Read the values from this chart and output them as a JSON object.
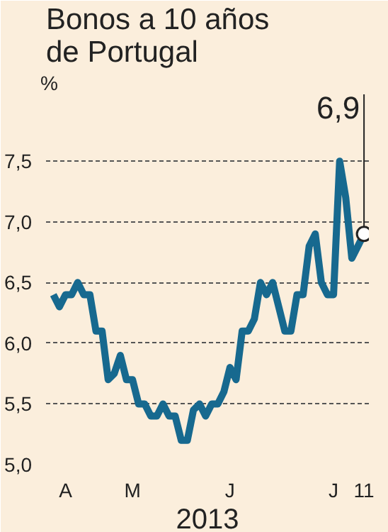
{
  "chart_data": {
    "type": "line",
    "title": "Bonos a 10 años de Portugal",
    "ylabel": "%",
    "xlabel": "2013",
    "categories": [
      null,
      null,
      "A",
      null,
      null,
      null,
      null,
      null,
      null,
      null,
      null,
      null,
      null,
      "M",
      null,
      null,
      null,
      null,
      null,
      null,
      null,
      null,
      null,
      null,
      null,
      null,
      null,
      null,
      null,
      "J",
      null,
      null,
      null,
      null,
      null,
      null,
      null,
      null,
      null,
      null,
      null,
      null,
      null,
      null,
      null,
      null,
      "J",
      null,
      null,
      null,
      null,
      "11"
    ],
    "series": [
      {
        "color": "#17698f",
        "values": [
          6.4,
          6.3,
          6.4,
          6.4,
          6.5,
          6.4,
          6.4,
          6.1,
          6.1,
          5.7,
          5.75,
          5.9,
          5.7,
          5.7,
          5.5,
          5.5,
          5.4,
          5.4,
          5.5,
          5.4,
          5.4,
          5.2,
          5.2,
          5.45,
          5.5,
          5.4,
          5.5,
          5.5,
          5.6,
          5.8,
          5.7,
          6.1,
          6.1,
          6.2,
          6.5,
          6.4,
          6.5,
          6.3,
          6.1,
          6.1,
          6.4,
          6.4,
          6.8,
          6.9,
          6.5,
          6.4,
          6.4,
          7.5,
          7.2,
          6.7,
          6.8,
          6.9
        ]
      }
    ],
    "ylim": [
      5.0,
      8.05
    ],
    "yticks": [
      {
        "value": 5.0,
        "label": "5,0"
      },
      {
        "value": 5.5,
        "label": "5,5"
      },
      {
        "value": 6.0,
        "label": "6,0"
      },
      {
        "value": 6.5,
        "label": "6,5"
      },
      {
        "value": 7.0,
        "label": "7,0"
      },
      {
        "value": 7.5,
        "label": "7,5"
      }
    ],
    "grid": "y",
    "marker": "none",
    "line_style": "solid",
    "annotations": [
      {
        "text": "6,9",
        "x": "11",
        "y": 6.9
      }
    ]
  }
}
